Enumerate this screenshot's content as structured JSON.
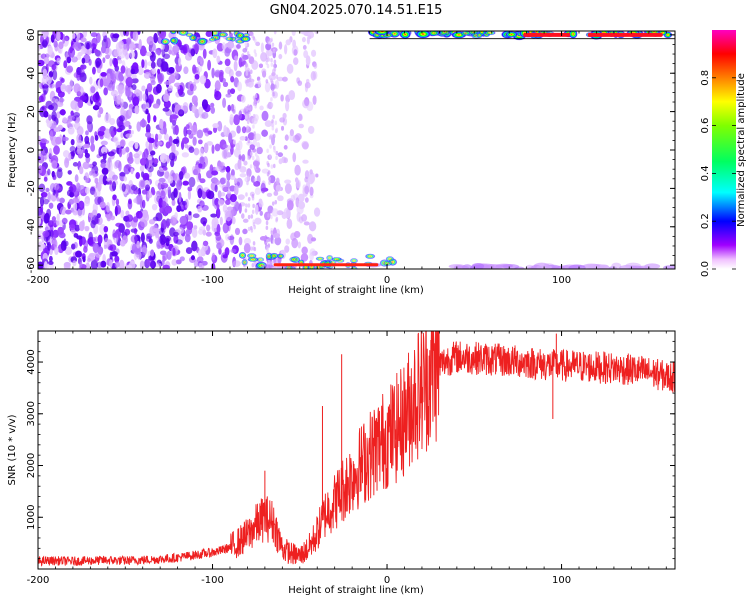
{
  "title": "GN04.2025.070.14.51.E15",
  "chart_data": [
    {
      "type": "heatmap",
      "xlabel": "Height of straight line (km)",
      "ylabel": "Frequency (Hz)",
      "xlim": [
        -200,
        165
      ],
      "ylim": [
        -62,
        62
      ],
      "x_ticks": [
        -200,
        -100,
        0,
        100
      ],
      "y_ticks": [
        -60,
        -40,
        -20,
        0,
        20,
        40,
        60
      ],
      "grid": false,
      "colormap": [
        "#ffffff",
        "#ff00ff",
        "#0000ff",
        "#00ffff",
        "#00ff00",
        "#ffff00",
        "#ff8000",
        "#ff0000",
        "#ff00ff"
      ],
      "colorbar": {
        "label": "Normalized spectral amplitude",
        "range": [
          0,
          1
        ],
        "ticks": [
          "0.0",
          "0.2",
          "0.4",
          "0.6",
          "0.8"
        ],
        "tick_values": [
          0,
          0.2,
          0.4,
          0.6,
          0.8
        ]
      },
      "features": [
        {
          "name": "noise",
          "x": [
            -200,
            -90
          ],
          "y": [
            -62,
            62
          ],
          "amplitude": 0.15
        },
        {
          "name": "upper-edge-band",
          "x": [
            -130,
            -80
          ],
          "y": [
            52,
            62
          ],
          "amplitude": 0.5
        },
        {
          "name": "upper-edge-band",
          "x": [
            -10,
            165
          ],
          "y": [
            58,
            62
          ],
          "amplitude": 0.8
        },
        {
          "name": "lower-edge-band",
          "x": [
            -95,
            5
          ],
          "y": [
            -62,
            -50
          ],
          "amplitude": 0.45
        },
        {
          "name": "lower-edge-band",
          "x": [
            40,
            165
          ],
          "y": [
            -62,
            -59
          ],
          "amplitude": 0.08
        }
      ]
    },
    {
      "type": "line",
      "xlabel": "Height of straight line (km)",
      "ylabel": "SNR (10 * v/v)",
      "xlim": [
        -200,
        165
      ],
      "ylim": [
        0,
        4600
      ],
      "x_ticks": [
        -200,
        -100,
        0,
        100
      ],
      "y_ticks": [
        1000,
        2000,
        3000,
        4000
      ],
      "grid": false,
      "color": "#ee2020",
      "series": [
        {
          "x": [
            -200,
            -190,
            -180,
            -170,
            -160,
            -150,
            -140,
            -130,
            -120,
            -110,
            -100,
            -95,
            -90,
            -85,
            -80,
            -75,
            -70,
            -65,
            -60,
            -55,
            -50,
            -45,
            -40,
            -35,
            -30,
            -25,
            -20,
            -15,
            -10,
            -5,
            0,
            5,
            10,
            15,
            20,
            25,
            30,
            35,
            40,
            50,
            60,
            70,
            80,
            90,
            100,
            110,
            120,
            130,
            140,
            150,
            160,
            165
          ],
          "values": [
            150,
            160,
            150,
            160,
            170,
            160,
            175,
            190,
            220,
            270,
            320,
            360,
            420,
            520,
            650,
            850,
            1000,
            900,
            400,
            300,
            250,
            400,
            700,
            1100,
            1300,
            1550,
            1800,
            2000,
            2200,
            2400,
            2550,
            2700,
            2900,
            3300,
            3500,
            3750,
            3950,
            4050,
            4100,
            4080,
            4050,
            4020,
            4000,
            3950,
            3930,
            3920,
            3900,
            3880,
            3850,
            3800,
            3720,
            3700
          ],
          "spikes": [
            {
              "x": -70,
              "value": 1900
            },
            {
              "x": -26,
              "value": 4150
            },
            {
              "x": -37,
              "value": 3150
            },
            {
              "x": 5,
              "value": 2500
            },
            {
              "x": 95,
              "value": 2900
            },
            {
              "x": 97,
              "value": 4550
            }
          ]
        }
      ]
    }
  ]
}
